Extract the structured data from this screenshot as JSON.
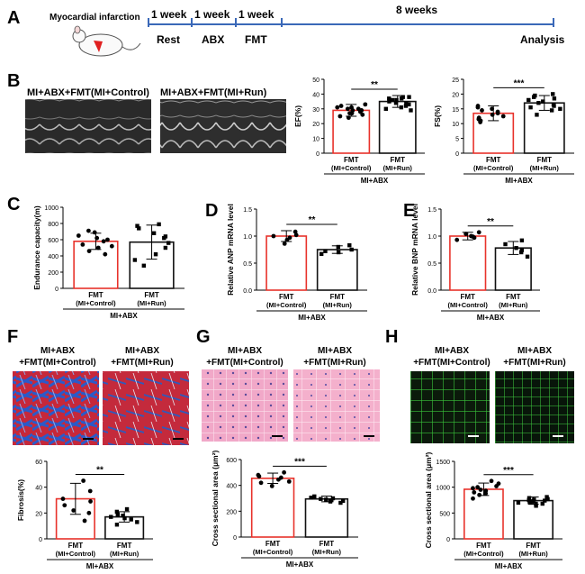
{
  "panels": {
    "A": "A",
    "B": "B",
    "C": "C",
    "D": "D",
    "E": "E",
    "F": "F",
    "G": "G",
    "H": "H"
  },
  "timeline": {
    "mouse_label": "Myocardial infarction",
    "segments": [
      "1 week",
      "1 week",
      "1 week",
      "8 weeks"
    ],
    "phases": [
      "Rest",
      "ABX",
      "FMT"
    ],
    "end": "Analysis"
  },
  "echo": {
    "left_title": "MI+ABX+FMT(MI+Control)",
    "right_title": "MI+ABX+FMT(MI+Run)"
  },
  "histology": {
    "F": {
      "left": [
        "MI+ABX",
        "+FMT(MI+Control)"
      ],
      "right": [
        "MI+ABX",
        "+FMT(MI+Run)"
      ]
    },
    "G": {
      "left": [
        "MI+ABX",
        "+FMT(MI+Control)"
      ],
      "right": [
        "MI+ABX",
        "+FMT(MI+Run)"
      ]
    },
    "H": {
      "left": [
        "MI+ABX",
        "+FMT(MI+Control)"
      ],
      "right": [
        "MI+ABX",
        "+FMT(MI+Run)"
      ]
    }
  },
  "colors": {
    "control_bar": "#e8322b",
    "run_bar": "#111111"
  },
  "chart_data": [
    {
      "id": "EF",
      "type": "bar",
      "ylabel": "EF(%)",
      "ylim": [
        0,
        50
      ],
      "ticks": [
        0,
        10,
        20,
        30,
        40,
        50
      ],
      "categories": [
        [
          "FMT",
          "(MI+Control)"
        ],
        [
          "FMT",
          "(MI+Run)"
        ]
      ],
      "group_label": "MI+ABX",
      "values": [
        29,
        35
      ],
      "errors": [
        4,
        4
      ],
      "significance": "**",
      "points": [
        [
          24,
          26,
          27,
          28,
          29,
          30,
          31,
          32,
          33,
          27,
          25,
          30,
          31,
          29
        ],
        [
          30,
          31,
          32,
          34,
          35,
          36,
          37,
          38,
          33,
          34,
          36,
          38,
          37,
          29
        ]
      ]
    },
    {
      "id": "FS",
      "type": "bar",
      "ylabel": "FS(%)",
      "ylim": [
        0,
        25
      ],
      "ticks": [
        0,
        5,
        10,
        15,
        20,
        25
      ],
      "categories": [
        [
          "FMT",
          "(MI+Control)"
        ],
        [
          "FMT",
          "(MI+Run)"
        ]
      ],
      "group_label": "MI+ABX",
      "values": [
        13.5,
        17
      ],
      "errors": [
        2.5,
        2.5
      ],
      "significance": "***",
      "points": [
        [
          10.5,
          11,
          12,
          13,
          14,
          15,
          16,
          12.5,
          13.5,
          14.5,
          11.5,
          15.5
        ],
        [
          13,
          14.5,
          15,
          16,
          17,
          18,
          19,
          19.5,
          17.5,
          16.5,
          18.5,
          20,
          15.5
        ]
      ]
    },
    {
      "id": "C",
      "type": "bar",
      "ylabel": "Endurance capacity(m)",
      "ylim": [
        0,
        1000
      ],
      "ticks": [
        0,
        200,
        400,
        600,
        800,
        1000
      ],
      "categories": [
        [
          "FMT",
          "(MI+Control)"
        ],
        [
          "FMT",
          "(MI+Run)"
        ]
      ],
      "group_label": "MI+ABX",
      "values": [
        580,
        570
      ],
      "errors": [
        100,
        210
      ],
      "significance": "",
      "points": [
        [
          420,
          460,
          500,
          540,
          580,
          620,
          650,
          690,
          710,
          600,
          520
        ],
        [
          280,
          350,
          420,
          500,
          560,
          620,
          680,
          740,
          770,
          790,
          640
        ]
      ]
    },
    {
      "id": "D",
      "type": "bar",
      "ylabel": "Relative ANP mRNA level",
      "ylim": [
        0,
        1.5
      ],
      "ticks": [
        0.0,
        0.5,
        1.0,
        1.5
      ],
      "categories": [
        [
          "FMT",
          "(MI+Control)"
        ],
        [
          "FMT",
          "(MI+Run)"
        ]
      ],
      "group_label": "MI+ABX",
      "values": [
        1.0,
        0.75
      ],
      "errors": [
        0.1,
        0.07
      ],
      "significance": "**",
      "points": [
        [
          0.86,
          0.93,
          1.0,
          1.08,
          1.02,
          0.97
        ],
        [
          0.67,
          0.72,
          0.75,
          0.8,
          0.83,
          0.7
        ]
      ]
    },
    {
      "id": "E",
      "type": "bar",
      "ylabel": "Relative BNP mRNA level",
      "ylim": [
        0,
        1.5
      ],
      "ticks": [
        0.0,
        0.5,
        1.0,
        1.5
      ],
      "categories": [
        [
          "FMT",
          "(MI+Control)"
        ],
        [
          "FMT",
          "(MI+Run)"
        ]
      ],
      "group_label": "MI+ABX",
      "values": [
        1.0,
        0.78
      ],
      "errors": [
        0.07,
        0.12
      ],
      "significance": "**",
      "points": [
        [
          0.93,
          0.97,
          1.0,
          1.04,
          1.07,
          0.99
        ],
        [
          0.62,
          0.7,
          0.78,
          0.85,
          0.92,
          0.74
        ]
      ]
    },
    {
      "id": "F",
      "type": "bar",
      "ylabel": "Fibrosis(%)",
      "ylim": [
        0,
        60
      ],
      "ticks": [
        0,
        20,
        40,
        60
      ],
      "categories": [
        [
          "FMT",
          "(MI+Control)"
        ],
        [
          "FMT",
          "(MI+Run)"
        ]
      ],
      "group_label": "MI+ABX",
      "values": [
        31,
        17
      ],
      "errors": [
        12,
        4
      ],
      "significance": "**",
      "points": [
        [
          14,
          20,
          26,
          31,
          37,
          45,
          29,
          22
        ],
        [
          11,
          13,
          15,
          17,
          19,
          21,
          23,
          16,
          18
        ]
      ]
    },
    {
      "id": "G",
      "type": "bar",
      "ylabel": "Cross sectional area (μm²)",
      "ylim": [
        0,
        600
      ],
      "ticks": [
        0,
        200,
        400,
        600
      ],
      "categories": [
        [
          "FMT",
          "(MI+Control)"
        ],
        [
          "FMT",
          "(MI+Run)"
        ]
      ],
      "group_label": "MI+ABX",
      "values": [
        455,
        295
      ],
      "errors": [
        40,
        22
      ],
      "significance": "***",
      "points": [
        [
          395,
          420,
          445,
          460,
          480,
          500,
          430,
          470
        ],
        [
          265,
          275,
          285,
          295,
          305,
          315,
          290,
          300,
          280
        ]
      ]
    },
    {
      "id": "H",
      "type": "bar",
      "ylabel": "Cross sectional area (μm²)",
      "ylim": [
        0,
        1500
      ],
      "ticks": [
        0,
        500,
        1000,
        1500
      ],
      "categories": [
        [
          "FMT",
          "(MI+Control)"
        ],
        [
          "FMT",
          "(MI+Run)"
        ]
      ],
      "group_label": "MI+ABX",
      "values": [
        960,
        740
      ],
      "errors": [
        120,
        70
      ],
      "significance": "***",
      "points": [
        [
          780,
          850,
          900,
          950,
          980,
          1020,
          1070,
          1120,
          930,
          1000,
          880
        ],
        [
          640,
          680,
          700,
          720,
          740,
          760,
          790,
          810,
          730,
          770,
          700,
          750,
          680
        ]
      ]
    }
  ]
}
